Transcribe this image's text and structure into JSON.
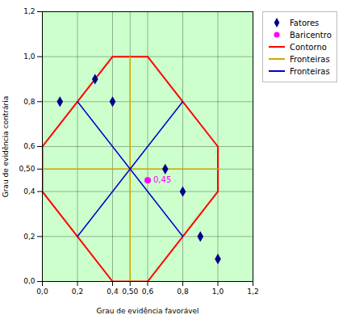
{
  "chart_data": {
    "type": "scatter",
    "xlabel": "Grau de evidência favorável",
    "ylabel": "Grau de evidência contrária",
    "xlim": [
      0.0,
      1.2
    ],
    "ylim": [
      0.0,
      1.2
    ],
    "xticks": [
      {
        "value": 0.0,
        "label": "0,0"
      },
      {
        "value": 0.2,
        "label": "0,2"
      },
      {
        "value": 0.4,
        "label": "0,4"
      },
      {
        "value": 0.5,
        "label": "0,50"
      },
      {
        "value": 0.6,
        "label": "0,6"
      },
      {
        "value": 0.8,
        "label": "0,8"
      },
      {
        "value": 1.0,
        "label": "1,0"
      },
      {
        "value": 1.2,
        "label": "1,2"
      }
    ],
    "yticks": [
      {
        "value": 0.0,
        "label": "0,0"
      },
      {
        "value": 0.2,
        "label": "0,2"
      },
      {
        "value": 0.4,
        "label": "0,4"
      },
      {
        "value": 0.5,
        "label": "0,50"
      },
      {
        "value": 0.6,
        "label": "0,6"
      },
      {
        "value": 0.8,
        "label": "0,8"
      },
      {
        "value": 1.0,
        "label": "1,0"
      },
      {
        "value": 1.2,
        "label": "1,2"
      }
    ],
    "grid": true,
    "legend": "right",
    "series": [
      {
        "name": "Fatores",
        "type": "scatter",
        "marker": "diamond",
        "color": "#00008b",
        "x": [
          0.1,
          0.3,
          0.4,
          0.7,
          0.8,
          0.9,
          1.0
        ],
        "values": [
          0.8,
          0.9,
          0.8,
          0.5,
          0.4,
          0.2,
          0.1
        ]
      },
      {
        "name": "Baricentro",
        "type": "scatter",
        "marker": "circle",
        "color": "#ff00ff",
        "x": [
          0.6
        ],
        "values": [
          0.45
        ],
        "data_labels": true,
        "value_labels": [
          "0,45"
        ]
      },
      {
        "name": "Contorno",
        "type": "line",
        "color": "#ff0000",
        "x": [
          0.2,
          0.4,
          0.6,
          0.8,
          1.0,
          1.0,
          0.8,
          0.6,
          0.4,
          0.2,
          0.0,
          0.0,
          0.2
        ],
        "values": [
          0.8,
          1.0,
          1.0,
          0.8,
          0.6,
          0.4,
          0.2,
          0.0,
          0.0,
          0.2,
          0.4,
          0.6,
          0.8
        ]
      },
      {
        "name": "Fronteiras",
        "type": "line",
        "color": "#ccaa00",
        "x": [
          0.5,
          0.5,
          null,
          0.0,
          1.0
        ],
        "values": [
          0.0,
          1.0,
          null,
          0.5,
          0.5
        ]
      },
      {
        "name": "Fronteiras",
        "type": "line",
        "color": "#0000cc",
        "x": [
          0.2,
          0.8,
          null,
          0.2,
          0.8
        ],
        "values": [
          0.8,
          0.2,
          null,
          0.2,
          0.8
        ]
      }
    ]
  }
}
